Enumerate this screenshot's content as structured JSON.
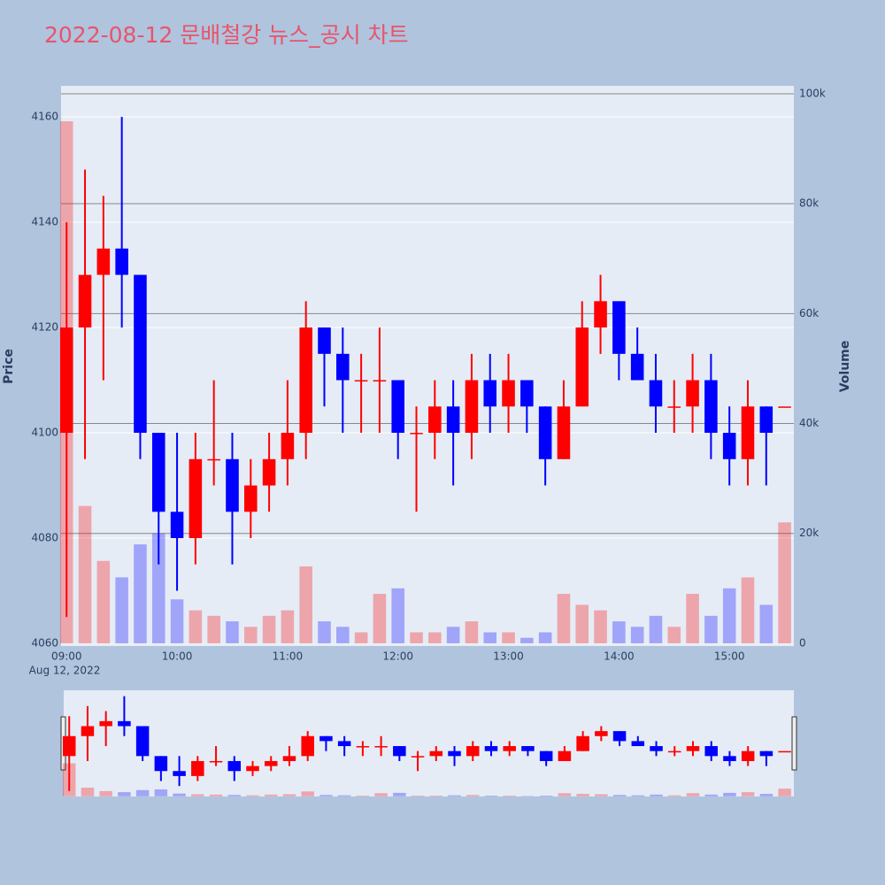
{
  "chart_data": {
    "type": "candlestick",
    "title": "2022-08-12 문배철강 뉴스_공시 차트",
    "y_label": "Price",
    "y2_label": "Volume",
    "x_date_label": "Aug 12, 2022",
    "increasing_color": "#ff0000",
    "decreasing_color": "#0000ff",
    "x": [
      "09:00",
      "09:10",
      "09:20",
      "09:30",
      "09:40",
      "09:50",
      "10:00",
      "10:10",
      "10:20",
      "10:30",
      "10:40",
      "10:50",
      "11:00",
      "11:10",
      "11:20",
      "11:30",
      "11:40",
      "11:50",
      "12:00",
      "12:10",
      "12:20",
      "12:30",
      "12:40",
      "12:50",
      "13:00",
      "13:10",
      "13:20",
      "13:30",
      "13:40",
      "13:50",
      "14:00",
      "14:10",
      "14:20",
      "14:30",
      "14:40",
      "14:50",
      "15:00",
      "15:10",
      "15:20",
      "15:30"
    ],
    "open": [
      4100,
      4120,
      4130,
      4135,
      4130,
      4100,
      4085,
      4080,
      4095,
      4095,
      4085,
      4090,
      4095,
      4100,
      4120,
      4115,
      4110,
      4110,
      4110,
      4100,
      4100,
      4105,
      4100,
      4110,
      4105,
      4110,
      4105,
      4095,
      4105,
      4120,
      4125,
      4115,
      4110,
      4105,
      4105,
      4110,
      4100,
      4095,
      4105,
      4105
    ],
    "high": [
      4140,
      4150,
      4145,
      4160,
      4130,
      4100,
      4100,
      4100,
      4110,
      4100,
      4095,
      4100,
      4110,
      4125,
      4120,
      4120,
      4115,
      4120,
      4110,
      4105,
      4110,
      4110,
      4115,
      4115,
      4115,
      4110,
      4105,
      4110,
      4125,
      4130,
      4125,
      4120,
      4115,
      4110,
      4115,
      4115,
      4105,
      4110,
      4105,
      4105
    ],
    "low": [
      4065,
      4095,
      4110,
      4120,
      4095,
      4075,
      4070,
      4075,
      4090,
      4075,
      4080,
      4085,
      4090,
      4095,
      4105,
      4100,
      4100,
      4100,
      4095,
      4085,
      4095,
      4090,
      4095,
      4100,
      4100,
      4100,
      4090,
      4095,
      4105,
      4115,
      4110,
      4110,
      4100,
      4100,
      4100,
      4095,
      4090,
      4090,
      4090,
      4105
    ],
    "close": [
      4120,
      4130,
      4135,
      4130,
      4100,
      4085,
      4080,
      4095,
      4095,
      4085,
      4090,
      4095,
      4100,
      4120,
      4115,
      4110,
      4110,
      4110,
      4100,
      4100,
      4105,
      4100,
      4110,
      4105,
      4110,
      4105,
      4095,
      4105,
      4120,
      4125,
      4115,
      4110,
      4105,
      4105,
      4110,
      4100,
      4095,
      4105,
      4100,
      4105
    ],
    "volume": [
      95000,
      25000,
      15000,
      12000,
      18000,
      20000,
      8000,
      6000,
      5000,
      4000,
      3000,
      5000,
      6000,
      14000,
      4000,
      3000,
      2000,
      9000,
      10000,
      2000,
      2000,
      3000,
      4000,
      2000,
      2000,
      1000,
      2000,
      9000,
      7000,
      6000,
      4000,
      3000,
      5000,
      3000,
      9000,
      5000,
      10000,
      12000,
      7000,
      22000
    ],
    "xlim": [
      "08:57",
      "15:35"
    ],
    "xticks": [
      "09:00",
      "10:00",
      "11:00",
      "12:00",
      "13:00",
      "14:00",
      "15:00"
    ],
    "ylim": [
      4059.5,
      4165.9
    ],
    "yticks": [
      4060,
      4080,
      4100,
      4120,
      4140,
      4160
    ],
    "y2lim": [
      -500,
      101450
    ],
    "y2ticks": [
      0,
      {
        "value": 20000,
        "label": "20k"
      },
      {
        "value": 40000,
        "label": "40k"
      },
      {
        "value": 60000,
        "label": "60k"
      },
      {
        "value": 80000,
        "label": "80k"
      },
      {
        "value": 100000,
        "label": "100k"
      }
    ]
  }
}
